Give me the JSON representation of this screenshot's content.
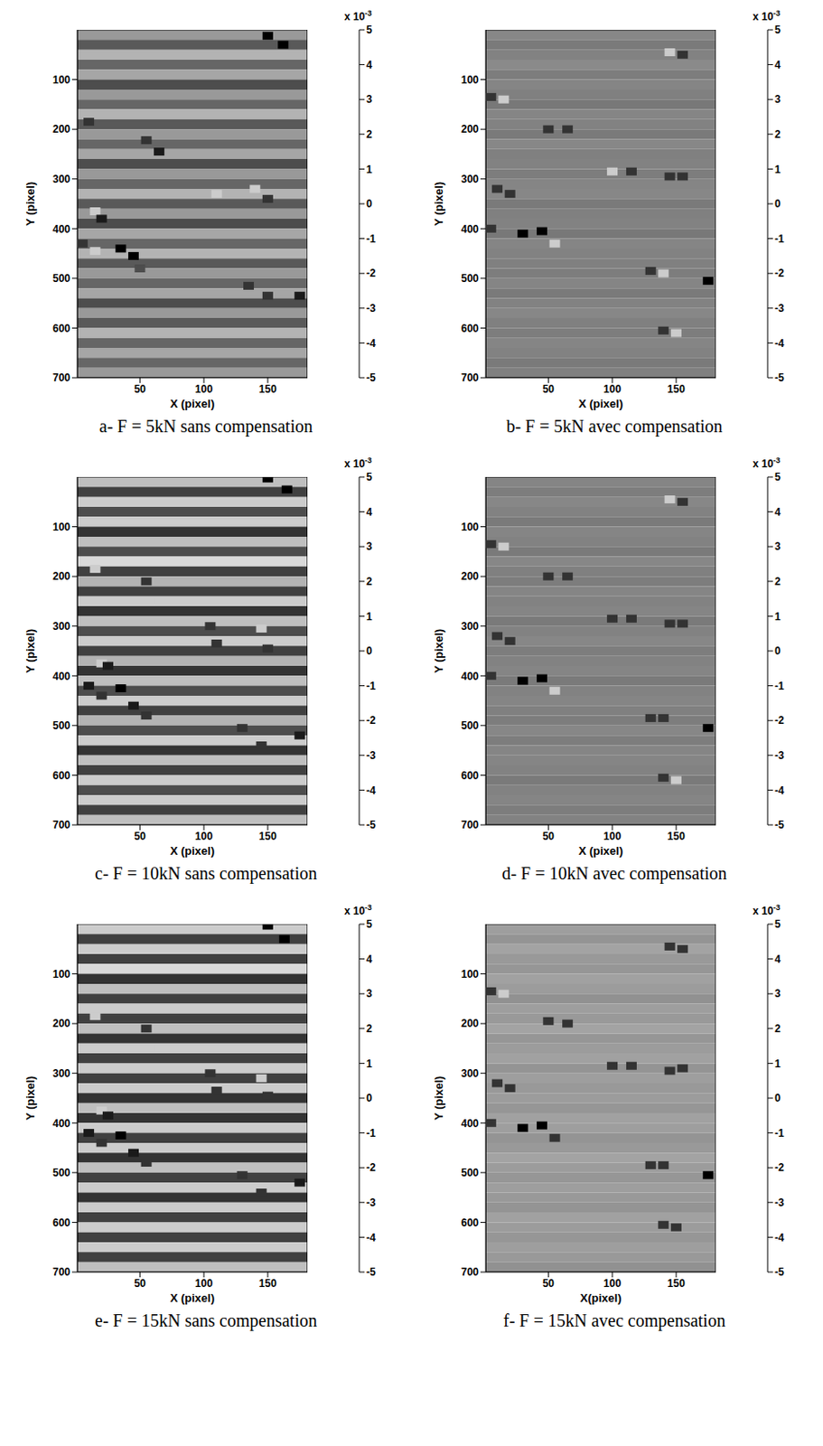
{
  "chart_data": [
    {
      "type": "heatmap",
      "title": "a- F = 5kN sans compensation",
      "xlabel": "X (pixel)",
      "ylabel": "Y (pixel)",
      "xlim": [
        1,
        181
      ],
      "ylim": [
        0,
        700
      ],
      "xticks": [
        50,
        100,
        150
      ],
      "yticks": [
        100,
        200,
        300,
        400,
        500,
        600,
        700
      ],
      "row_values": [
        1,
        -1.5,
        2,
        -1,
        1.5,
        -2,
        1,
        -1,
        2,
        -1.5,
        1,
        -1,
        1.5,
        -2,
        1,
        -1,
        2,
        -1.5,
        1,
        -2,
        1.5,
        -1,
        2,
        -1.5,
        1,
        -1,
        1.5,
        -2,
        1,
        -1.5,
        2,
        -1,
        1.5,
        -1,
        1
      ],
      "spots": [
        {
          "x": 150,
          "y": 12,
          "value": -5
        },
        {
          "x": 162,
          "y": 30,
          "value": -5
        },
        {
          "x": 10,
          "y": 185,
          "value": -3
        },
        {
          "x": 55,
          "y": 222,
          "value": -3
        },
        {
          "x": 65,
          "y": 245,
          "value": -4
        },
        {
          "x": 110,
          "y": 330,
          "value": 3
        },
        {
          "x": 140,
          "y": 320,
          "value": 3
        },
        {
          "x": 150,
          "y": 340,
          "value": -3
        },
        {
          "x": 15,
          "y": 365,
          "value": 3
        },
        {
          "x": 20,
          "y": 380,
          "value": -4
        },
        {
          "x": 5,
          "y": 430,
          "value": -3
        },
        {
          "x": 15,
          "y": 445,
          "value": 3
        },
        {
          "x": 35,
          "y": 440,
          "value": -5
        },
        {
          "x": 45,
          "y": 455,
          "value": -5
        },
        {
          "x": 50,
          "y": 480,
          "value": -2
        },
        {
          "x": 135,
          "y": 515,
          "value": -3
        },
        {
          "x": 150,
          "y": 535,
          "value": -3
        },
        {
          "x": 175,
          "y": 535,
          "value": -4
        }
      ],
      "colorbar": {
        "range": [
          -5,
          5
        ],
        "ticks": [
          -5,
          -4,
          -3,
          -2,
          -1,
          0,
          1,
          2,
          3,
          4,
          5
        ],
        "label": "x 10",
        "exponent": "-3"
      }
    },
    {
      "type": "heatmap",
      "title": "b- F = 5kN avec compensation",
      "xlabel": "X (pixel)",
      "ylabel": "Y (pixel)",
      "xlim": [
        1,
        181
      ],
      "ylim": [
        0,
        700
      ],
      "xticks": [
        50,
        100,
        150
      ],
      "yticks": [
        100,
        200,
        300,
        400,
        500,
        600,
        700
      ],
      "row_values": [
        0.3,
        -0.2,
        0.1,
        0.4,
        -0.1,
        0.2,
        0,
        -0.3,
        0.2,
        0.1,
        -0.2,
        0.3,
        0,
        0.1,
        -0.1,
        0.2,
        0.3,
        -0.2,
        0,
        0.1,
        -0.3,
        0.2,
        0.1,
        0,
        -0.1,
        0.2,
        -0.2,
        0.1,
        0.3,
        0,
        -0.1,
        0.2,
        0.1,
        -0.2,
        0
      ],
      "spots": [
        {
          "x": 145,
          "y": 45,
          "value": 3
        },
        {
          "x": 155,
          "y": 50,
          "value": -3
        },
        {
          "x": 5,
          "y": 135,
          "value": -3
        },
        {
          "x": 15,
          "y": 140,
          "value": 3
        },
        {
          "x": 50,
          "y": 200,
          "value": -3
        },
        {
          "x": 65,
          "y": 200,
          "value": -3
        },
        {
          "x": 100,
          "y": 285,
          "value": 3
        },
        {
          "x": 115,
          "y": 285,
          "value": -3
        },
        {
          "x": 145,
          "y": 295,
          "value": -3
        },
        {
          "x": 155,
          "y": 295,
          "value": -3
        },
        {
          "x": 10,
          "y": 320,
          "value": -3
        },
        {
          "x": 20,
          "y": 330,
          "value": -3
        },
        {
          "x": 5,
          "y": 400,
          "value": -3
        },
        {
          "x": 30,
          "y": 410,
          "value": -5
        },
        {
          "x": 45,
          "y": 405,
          "value": -5
        },
        {
          "x": 55,
          "y": 430,
          "value": 3
        },
        {
          "x": 130,
          "y": 485,
          "value": -3
        },
        {
          "x": 140,
          "y": 490,
          "value": 3
        },
        {
          "x": 175,
          "y": 505,
          "value": -5
        },
        {
          "x": 140,
          "y": 605,
          "value": -3
        },
        {
          "x": 150,
          "y": 610,
          "value": 3
        }
      ],
      "colorbar": {
        "range": [
          -5,
          5
        ],
        "ticks": [
          -5,
          -4,
          -3,
          -2,
          -1,
          0,
          1,
          2,
          3,
          4,
          5
        ],
        "label": "x 10",
        "exponent": "-3"
      }
    },
    {
      "type": "heatmap",
      "title": "c- F = 10kN sans compensation",
      "xlabel": "X (pixel)",
      "ylabel": "Y (pixel)",
      "xlim": [
        1,
        181
      ],
      "ylim": [
        0,
        700
      ],
      "xticks": [
        50,
        100,
        150
      ],
      "yticks": [
        100,
        200,
        300,
        400,
        500,
        600,
        700
      ],
      "row_values": [
        2.5,
        -2.5,
        3,
        -2,
        3,
        -3,
        2.5,
        -2,
        3.5,
        -2.5,
        2,
        -2.5,
        3,
        -3,
        2.5,
        -2,
        3,
        -2.5,
        2,
        -3,
        2.5,
        -2,
        3,
        -2.5,
        2,
        -2,
        3,
        -3,
        2.5,
        -2.5,
        3,
        -2,
        3,
        -2.5,
        2.5
      ],
      "spots": [
        {
          "x": 150,
          "y": 3,
          "value": -5
        },
        {
          "x": 165,
          "y": 25,
          "value": -5
        },
        {
          "x": 15,
          "y": 185,
          "value": 3
        },
        {
          "x": 55,
          "y": 210,
          "value": -3
        },
        {
          "x": 65,
          "y": 250,
          "value": 3
        },
        {
          "x": 105,
          "y": 300,
          "value": -3
        },
        {
          "x": 110,
          "y": 335,
          "value": -3
        },
        {
          "x": 145,
          "y": 305,
          "value": 3
        },
        {
          "x": 150,
          "y": 345,
          "value": -3
        },
        {
          "x": 20,
          "y": 375,
          "value": 3
        },
        {
          "x": 25,
          "y": 380,
          "value": -4
        },
        {
          "x": 10,
          "y": 420,
          "value": -4
        },
        {
          "x": 20,
          "y": 440,
          "value": -3
        },
        {
          "x": 35,
          "y": 425,
          "value": -5
        },
        {
          "x": 45,
          "y": 460,
          "value": -4
        },
        {
          "x": 55,
          "y": 480,
          "value": -3
        },
        {
          "x": 130,
          "y": 505,
          "value": -3
        },
        {
          "x": 145,
          "y": 540,
          "value": -3
        },
        {
          "x": 175,
          "y": 520,
          "value": -4
        }
      ],
      "colorbar": {
        "range": [
          -5,
          5
        ],
        "ticks": [
          -5,
          -4,
          -3,
          -2,
          -1,
          0,
          1,
          2,
          3,
          4,
          5
        ],
        "label": "x 10",
        "exponent": "-3"
      }
    },
    {
      "type": "heatmap",
      "title": "d- F = 10kN avec compensation",
      "xlabel": "X (pixel)",
      "ylabel": "Y (pixel)",
      "xlim": [
        1,
        181
      ],
      "ylim": [
        0,
        700
      ],
      "xticks": [
        50,
        100,
        150
      ],
      "yticks": [
        100,
        200,
        300,
        400,
        500,
        600,
        700
      ],
      "row_values": [
        0.2,
        -0.1,
        0.3,
        0.1,
        -0.2,
        0.2,
        0.1,
        -0.2,
        0.3,
        0,
        -0.1,
        0.2,
        0.1,
        0.2,
        -0.2,
        0.1,
        0.3,
        -0.1,
        0.1,
        0.2,
        -0.2,
        0.1,
        0.2,
        0,
        -0.1,
        0.3,
        -0.1,
        0.2,
        0.2,
        0.1,
        -0.2,
        0.1,
        0.2,
        -0.1,
        0.1
      ],
      "spots": [
        {
          "x": 145,
          "y": 45,
          "value": 3
        },
        {
          "x": 155,
          "y": 50,
          "value": -3
        },
        {
          "x": 5,
          "y": 135,
          "value": -3
        },
        {
          "x": 15,
          "y": 140,
          "value": 3
        },
        {
          "x": 50,
          "y": 200,
          "value": -3
        },
        {
          "x": 65,
          "y": 200,
          "value": -3
        },
        {
          "x": 100,
          "y": 285,
          "value": -3
        },
        {
          "x": 115,
          "y": 285,
          "value": -3
        },
        {
          "x": 145,
          "y": 295,
          "value": -3
        },
        {
          "x": 155,
          "y": 295,
          "value": -3
        },
        {
          "x": 10,
          "y": 320,
          "value": -3
        },
        {
          "x": 20,
          "y": 330,
          "value": -3
        },
        {
          "x": 5,
          "y": 400,
          "value": -3
        },
        {
          "x": 30,
          "y": 410,
          "value": -5
        },
        {
          "x": 45,
          "y": 405,
          "value": -5
        },
        {
          "x": 55,
          "y": 430,
          "value": 3
        },
        {
          "x": 130,
          "y": 485,
          "value": -3
        },
        {
          "x": 140,
          "y": 485,
          "value": -3
        },
        {
          "x": 175,
          "y": 505,
          "value": -5
        },
        {
          "x": 140,
          "y": 605,
          "value": -3
        },
        {
          "x": 150,
          "y": 610,
          "value": 3
        }
      ],
      "colorbar": {
        "range": [
          -5,
          5
        ],
        "ticks": [
          -5,
          -4,
          -3,
          -2,
          -1,
          0,
          1,
          2,
          3,
          4,
          5
        ],
        "label": "x 10",
        "exponent": "-3"
      }
    },
    {
      "type": "heatmap",
      "title": "e- F = 15kN sans compensation",
      "xlabel": "X (pixel)",
      "ylabel": "Y (pixel)",
      "xlim": [
        1,
        181
      ],
      "ylim": [
        0,
        700
      ],
      "xticks": [
        50,
        100,
        150
      ],
      "yticks": [
        100,
        200,
        300,
        400,
        500,
        600,
        700
      ],
      "row_values": [
        3,
        -2.5,
        3,
        -2.5,
        3.5,
        -3,
        2.5,
        -2.5,
        3,
        -2.5,
        2.5,
        -3,
        3,
        -2.5,
        3,
        -2.5,
        3,
        -3,
        2.5,
        -3,
        3,
        -2.5,
        3,
        -3,
        2.5,
        -2.5,
        3,
        -3,
        3,
        -2.5,
        3,
        -2.5,
        3,
        -2.5,
        2.5
      ],
      "spots": [
        {
          "x": 150,
          "y": 3,
          "value": -5
        },
        {
          "x": 163,
          "y": 30,
          "value": -5
        },
        {
          "x": 15,
          "y": 185,
          "value": 3
        },
        {
          "x": 55,
          "y": 210,
          "value": -3
        },
        {
          "x": 65,
          "y": 250,
          "value": 3
        },
        {
          "x": 105,
          "y": 300,
          "value": -3
        },
        {
          "x": 110,
          "y": 335,
          "value": -3
        },
        {
          "x": 145,
          "y": 310,
          "value": 3
        },
        {
          "x": 150,
          "y": 345,
          "value": -3
        },
        {
          "x": 20,
          "y": 375,
          "value": 3
        },
        {
          "x": 25,
          "y": 385,
          "value": -4
        },
        {
          "x": 10,
          "y": 420,
          "value": -4
        },
        {
          "x": 20,
          "y": 440,
          "value": -3
        },
        {
          "x": 35,
          "y": 425,
          "value": -5
        },
        {
          "x": 45,
          "y": 460,
          "value": -4
        },
        {
          "x": 55,
          "y": 480,
          "value": -3
        },
        {
          "x": 130,
          "y": 505,
          "value": -3
        },
        {
          "x": 145,
          "y": 540,
          "value": -3
        },
        {
          "x": 175,
          "y": 520,
          "value": -4
        }
      ],
      "colorbar": {
        "range": [
          -5,
          5
        ],
        "ticks": [
          -5,
          -4,
          -3,
          -2,
          -1,
          0,
          1,
          2,
          3,
          4,
          5
        ],
        "label": "x 10",
        "exponent": "-3"
      }
    },
    {
      "type": "heatmap",
      "title": "f- F = 15kN avec compensation",
      "xlabel": "X(pixel)",
      "ylabel": "Y (pixel)",
      "xlim": [
        1,
        181
      ],
      "ylim": [
        0,
        700
      ],
      "xticks": [
        50,
        100,
        150
      ],
      "yticks": [
        100,
        200,
        300,
        400,
        500,
        600,
        700
      ],
      "row_values": [
        1.2,
        0.8,
        1.4,
        1,
        0.9,
        1.3,
        1.1,
        0.7,
        1.2,
        1,
        1.4,
        0.9,
        1.1,
        1.3,
        0.8,
        1.2,
        1,
        1.1,
        0.9,
        1.3,
        1.2,
        0.8,
        1,
        1.4,
        1.1,
        0.9,
        1.2,
        1,
        0.8,
        1.3,
        1.1,
        0.9,
        1.2,
        1,
        0.7
      ],
      "spots": [
        {
          "x": 145,
          "y": 45,
          "value": -3
        },
        {
          "x": 155,
          "y": 50,
          "value": -3
        },
        {
          "x": 5,
          "y": 135,
          "value": -3
        },
        {
          "x": 15,
          "y": 140,
          "value": 3
        },
        {
          "x": 50,
          "y": 195,
          "value": -3
        },
        {
          "x": 65,
          "y": 200,
          "value": -3
        },
        {
          "x": 100,
          "y": 285,
          "value": -3
        },
        {
          "x": 115,
          "y": 285,
          "value": -3
        },
        {
          "x": 145,
          "y": 295,
          "value": -3
        },
        {
          "x": 155,
          "y": 290,
          "value": -3
        },
        {
          "x": 10,
          "y": 320,
          "value": -3
        },
        {
          "x": 20,
          "y": 330,
          "value": -3
        },
        {
          "x": 5,
          "y": 400,
          "value": -3
        },
        {
          "x": 30,
          "y": 410,
          "value": -5
        },
        {
          "x": 45,
          "y": 405,
          "value": -5
        },
        {
          "x": 55,
          "y": 430,
          "value": -3
        },
        {
          "x": 130,
          "y": 485,
          "value": -3
        },
        {
          "x": 140,
          "y": 485,
          "value": -3
        },
        {
          "x": 175,
          "y": 505,
          "value": -5
        },
        {
          "x": 140,
          "y": 605,
          "value": -3
        },
        {
          "x": 150,
          "y": 610,
          "value": -3
        }
      ],
      "colorbar": {
        "range": [
          -5,
          5
        ],
        "ticks": [
          -5,
          -4,
          -3,
          -2,
          -1,
          0,
          1,
          2,
          3,
          4,
          5
        ],
        "label": "x 10",
        "exponent": "-3"
      }
    }
  ]
}
